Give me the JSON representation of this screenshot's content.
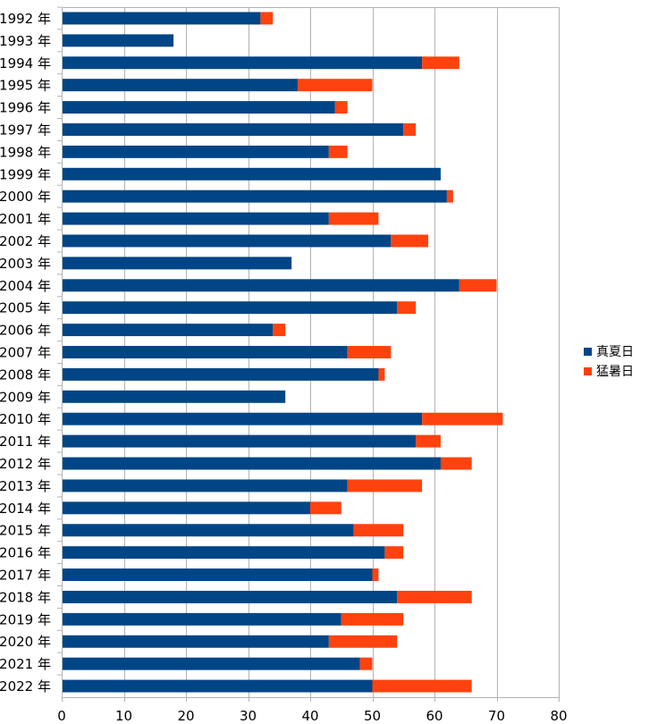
{
  "chart_data": {
    "type": "bar",
    "orientation": "horizontal",
    "stacked": true,
    "title": "",
    "xlabel": "",
    "ylabel": "",
    "xlim": [
      0,
      80
    ],
    "x_ticks": [
      0,
      10,
      20,
      30,
      40,
      50,
      60,
      70,
      80
    ],
    "grid": "vertical",
    "legend_position": "right",
    "categories": [
      "1992 年",
      "1993 年",
      "1994 年",
      "1995 年",
      "1996 年",
      "1997 年",
      "1998 年",
      "1999 年",
      "2000 年",
      "2001 年",
      "2002 年",
      "2003 年",
      "2004 年",
      "2005 年",
      "2006 年",
      "2007 年",
      "2008 年",
      "2009 年",
      "2010 年",
      "2011 年",
      "2012 年",
      "2013 年",
      "2014 年",
      "2015 年",
      "2016 年",
      "2017 年",
      "2018 年",
      "2019 年",
      "2020 年",
      "2021 年",
      "2022 年"
    ],
    "series": [
      {
        "name": "真夏日",
        "color": "#004586",
        "values": [
          32,
          18,
          58,
          38,
          44,
          55,
          43,
          61,
          62,
          43,
          53,
          37,
          64,
          54,
          34,
          46,
          51,
          36,
          58,
          57,
          61,
          46,
          40,
          47,
          52,
          50,
          54,
          45,
          43,
          48,
          50
        ]
      },
      {
        "name": "猛暑日",
        "color": "#ff420e",
        "values": [
          2,
          0,
          6,
          12,
          2,
          2,
          3,
          0,
          1,
          8,
          6,
          0,
          6,
          3,
          2,
          7,
          1,
          0,
          13,
          4,
          5,
          12,
          5,
          8,
          3,
          1,
          12,
          10,
          11,
          2,
          16
        ]
      }
    ]
  }
}
